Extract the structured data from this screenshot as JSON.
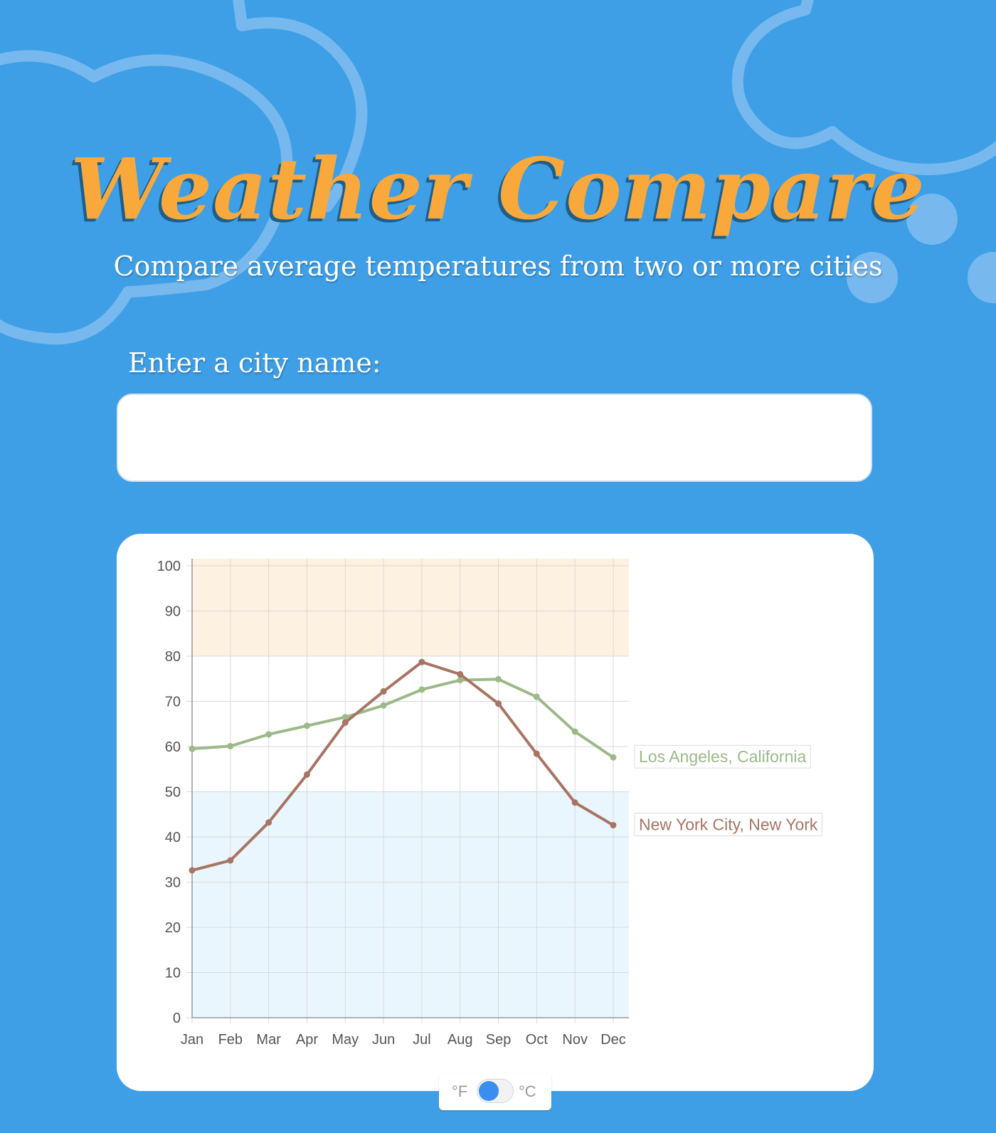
{
  "header": {
    "title": "Weather Compare",
    "subtitle": "Compare average temperatures from two or more cities"
  },
  "search": {
    "label": "Enter a city name:",
    "value": "",
    "placeholder": ""
  },
  "unit_toggle": {
    "left_label": "°F",
    "right_label": "°C",
    "selected": "°F"
  },
  "colors": {
    "background": "#3f9fe6",
    "title": "#f9a83c",
    "hot_band": "#fdf1e1",
    "cold_band": "#eaf6fd",
    "series_la": "#9cb988",
    "series_nyc": "#a87464",
    "toggle_knob": "#3b8ef0"
  },
  "chart_data": {
    "type": "line",
    "categories": [
      "Jan",
      "Feb",
      "Mar",
      "Apr",
      "May",
      "Jun",
      "Jul",
      "Aug",
      "Sep",
      "Oct",
      "Nov",
      "Dec"
    ],
    "ylim": [
      0,
      100
    ],
    "yticks": [
      "0",
      "10",
      "20",
      "30",
      "40",
      "50",
      "60",
      "70",
      "80",
      "90",
      "100"
    ],
    "grid": true,
    "bands": [
      {
        "from": 80,
        "to": 100,
        "meaning": "hot"
      },
      {
        "from": 0,
        "to": 50,
        "meaning": "cold"
      }
    ],
    "series": [
      {
        "name": "Los Angeles, California",
        "values": [
          59.5,
          60.1,
          62.7,
          64.6,
          66.5,
          69.1,
          72.6,
          74.7,
          74.9,
          71.0,
          63.3,
          57.6
        ]
      },
      {
        "name": "New York City, New York",
        "values": [
          32.6,
          34.8,
          43.2,
          53.8,
          65.3,
          72.2,
          78.7,
          76.0,
          69.5,
          58.4,
          47.6,
          42.6
        ]
      }
    ]
  }
}
